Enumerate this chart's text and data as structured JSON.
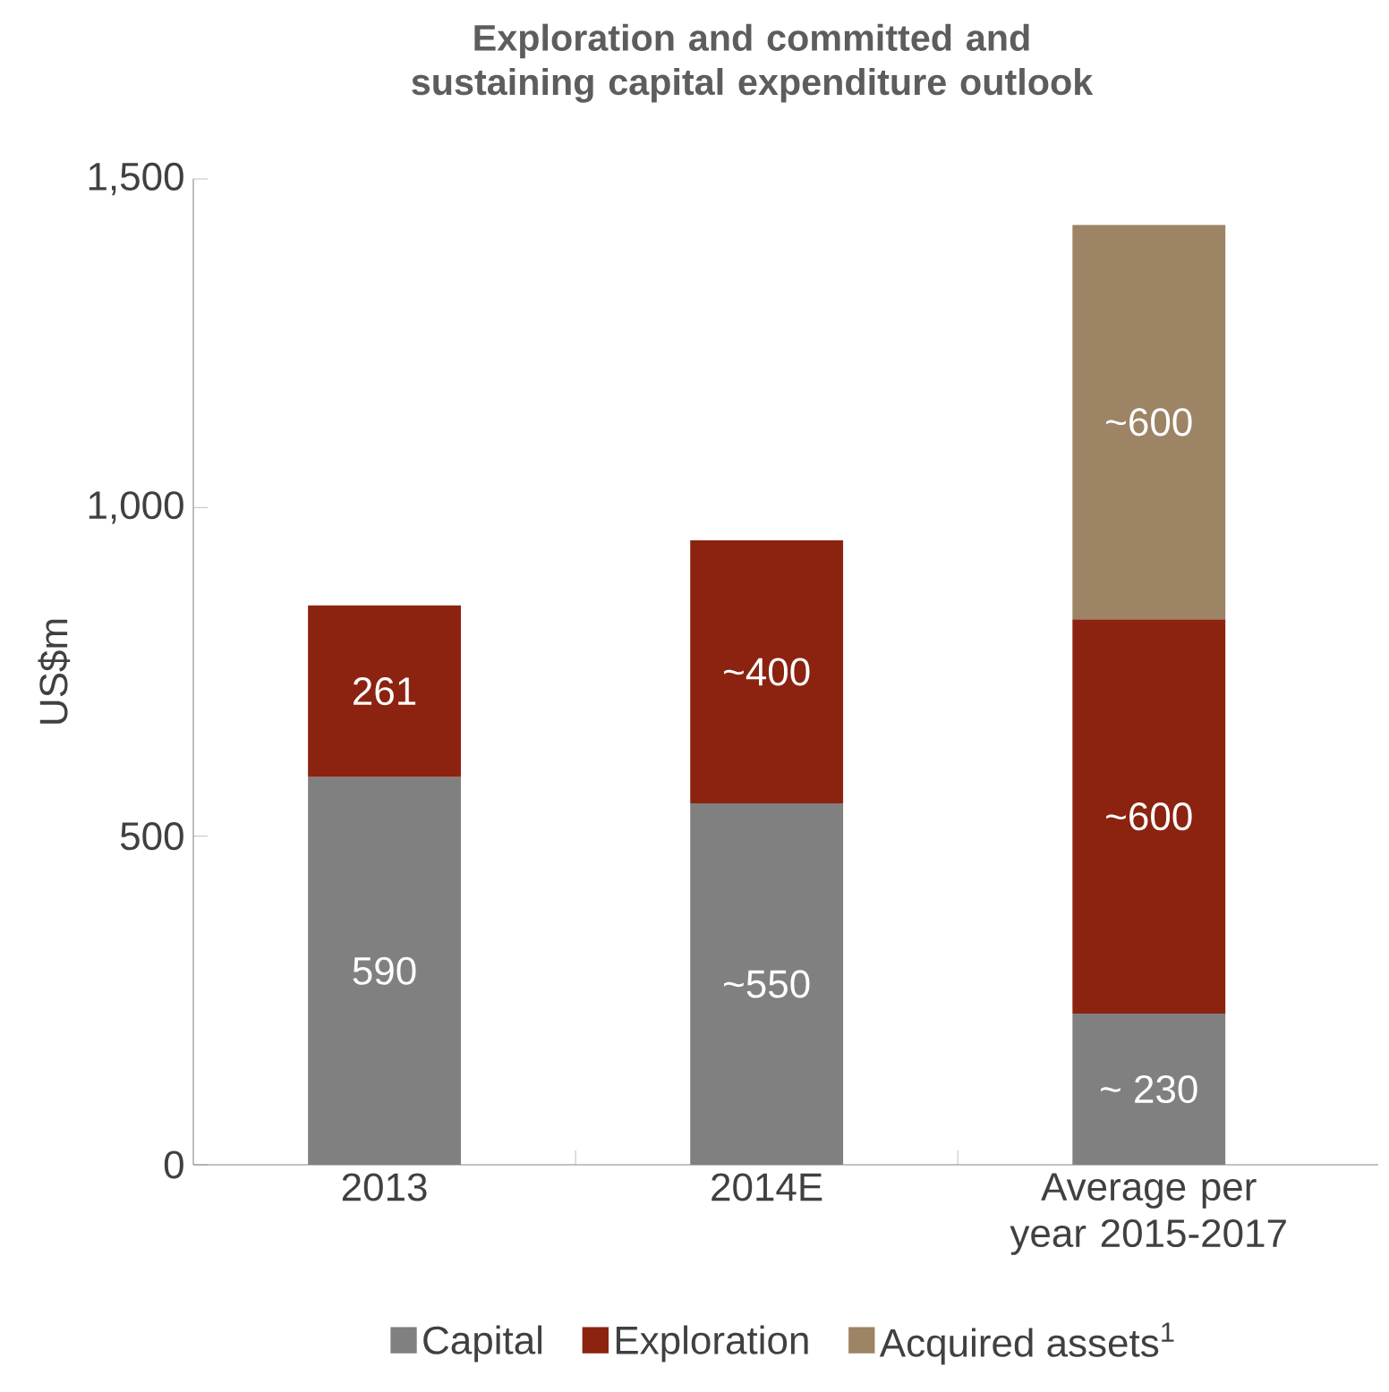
{
  "chart_data": {
    "type": "bar",
    "stacked": true,
    "title": "Exploration and committed and sustaining capital expenditure outlook",
    "ylabel": "US$m",
    "categories": [
      "2013",
      "2014E",
      "Average per year 2015-2017"
    ],
    "series": [
      {
        "name": "Capital",
        "color": "#808080",
        "values": [
          590,
          550,
          230
        ],
        "value_labels": [
          "590",
          "~550",
          "~ 230"
        ]
      },
      {
        "name": "Exploration",
        "color": "#8b2310",
        "values": [
          261,
          400,
          600
        ],
        "value_labels": [
          "261",
          "~400",
          "~600"
        ]
      },
      {
        "name": "Acquired assets$^{1}$",
        "color": "#9c8465",
        "values": [
          null,
          null,
          600
        ],
        "value_labels": [
          null,
          null,
          "~600"
        ]
      }
    ],
    "ylim": [
      0,
      1500
    ],
    "yticks": [
      0,
      500,
      {
        "value": 1000,
        "label": "1,000"
      },
      {
        "value": 1500,
        "label": "1,500"
      }
    ],
    "legend": "bottom",
    "grid": false
  }
}
